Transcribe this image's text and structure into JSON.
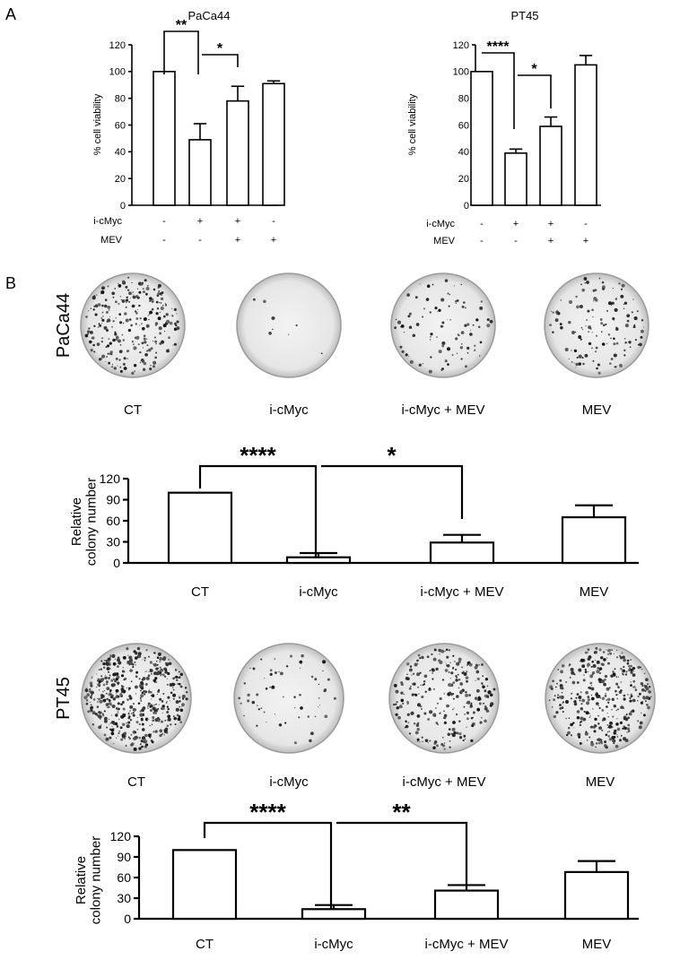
{
  "panel_labels": [
    "A",
    "B"
  ],
  "chart_data": [
    {
      "type": "bar",
      "title": "PaCa44",
      "ylabel": "% cell viability",
      "ylim": [
        0,
        120
      ],
      "yticks": [
        0,
        20,
        40,
        60,
        80,
        100,
        120
      ],
      "values": [
        100,
        49,
        78,
        91
      ],
      "errors": [
        0,
        12,
        11,
        2
      ],
      "conditions": [
        {
          "name": "i-cMyc",
          "signs": [
            "-",
            "+",
            "+",
            "-"
          ]
        },
        {
          "name": "MEV",
          "signs": [
            "-",
            "-",
            "+",
            "+"
          ]
        }
      ],
      "significance": [
        {
          "from": 0,
          "to": 1,
          "label": "**"
        },
        {
          "from": 1,
          "to": 2,
          "label": "*"
        }
      ],
      "grid": false
    },
    {
      "type": "bar",
      "title": "PT45",
      "ylabel": "% cell viability",
      "ylim": [
        0,
        120
      ],
      "yticks": [
        0,
        20,
        40,
        60,
        80,
        100,
        120
      ],
      "values": [
        100,
        39,
        59,
        105
      ],
      "errors": [
        0,
        3,
        7,
        7
      ],
      "conditions": [
        {
          "name": "i-cMyc",
          "signs": [
            "-",
            "+",
            "+",
            "-"
          ]
        },
        {
          "name": "MEV",
          "signs": [
            "-",
            "-",
            "+",
            "+"
          ]
        }
      ],
      "significance": [
        {
          "from": 0,
          "to": 1,
          "label": "****"
        },
        {
          "from": 1,
          "to": 2,
          "label": "*"
        }
      ],
      "grid": false
    },
    {
      "type": "bar",
      "title": "",
      "ylabel": "Relative colony number",
      "row_label": "PaCa44",
      "categories": [
        "CT",
        "i-cMyc",
        "i-cMyc + MEV",
        "MEV"
      ],
      "image_labels": [
        "CT",
        "i-cMyc",
        "i-cMyc + MEV",
        "MEV"
      ],
      "ylim": [
        0,
        120
      ],
      "yticks": [
        0,
        30,
        60,
        90,
        120
      ],
      "values": [
        100,
        8,
        29,
        65
      ],
      "errors": [
        0,
        6,
        11,
        17
      ],
      "significance": [
        {
          "from": 0,
          "to": 1,
          "label": "****"
        },
        {
          "from": 1,
          "to": 2,
          "label": "*"
        }
      ],
      "grid": false
    },
    {
      "type": "bar",
      "title": "",
      "ylabel": "Relative colony number",
      "row_label": "PT45",
      "categories": [
        "CT",
        "i-cMyc",
        "i-cMyc + MEV",
        "MEV"
      ],
      "image_labels": [
        "CT",
        "i-cMyc",
        "i-cMyc + MEV",
        "MEV"
      ],
      "ylim": [
        0,
        120
      ],
      "yticks": [
        0,
        30,
        60,
        90,
        120
      ],
      "values": [
        100,
        14,
        41,
        68
      ],
      "errors": [
        0,
        6,
        8,
        16
      ],
      "significance": [
        {
          "from": 0,
          "to": 1,
          "label": "****"
        },
        {
          "from": 1,
          "to": 2,
          "label": "**"
        }
      ],
      "grid": false
    }
  ]
}
